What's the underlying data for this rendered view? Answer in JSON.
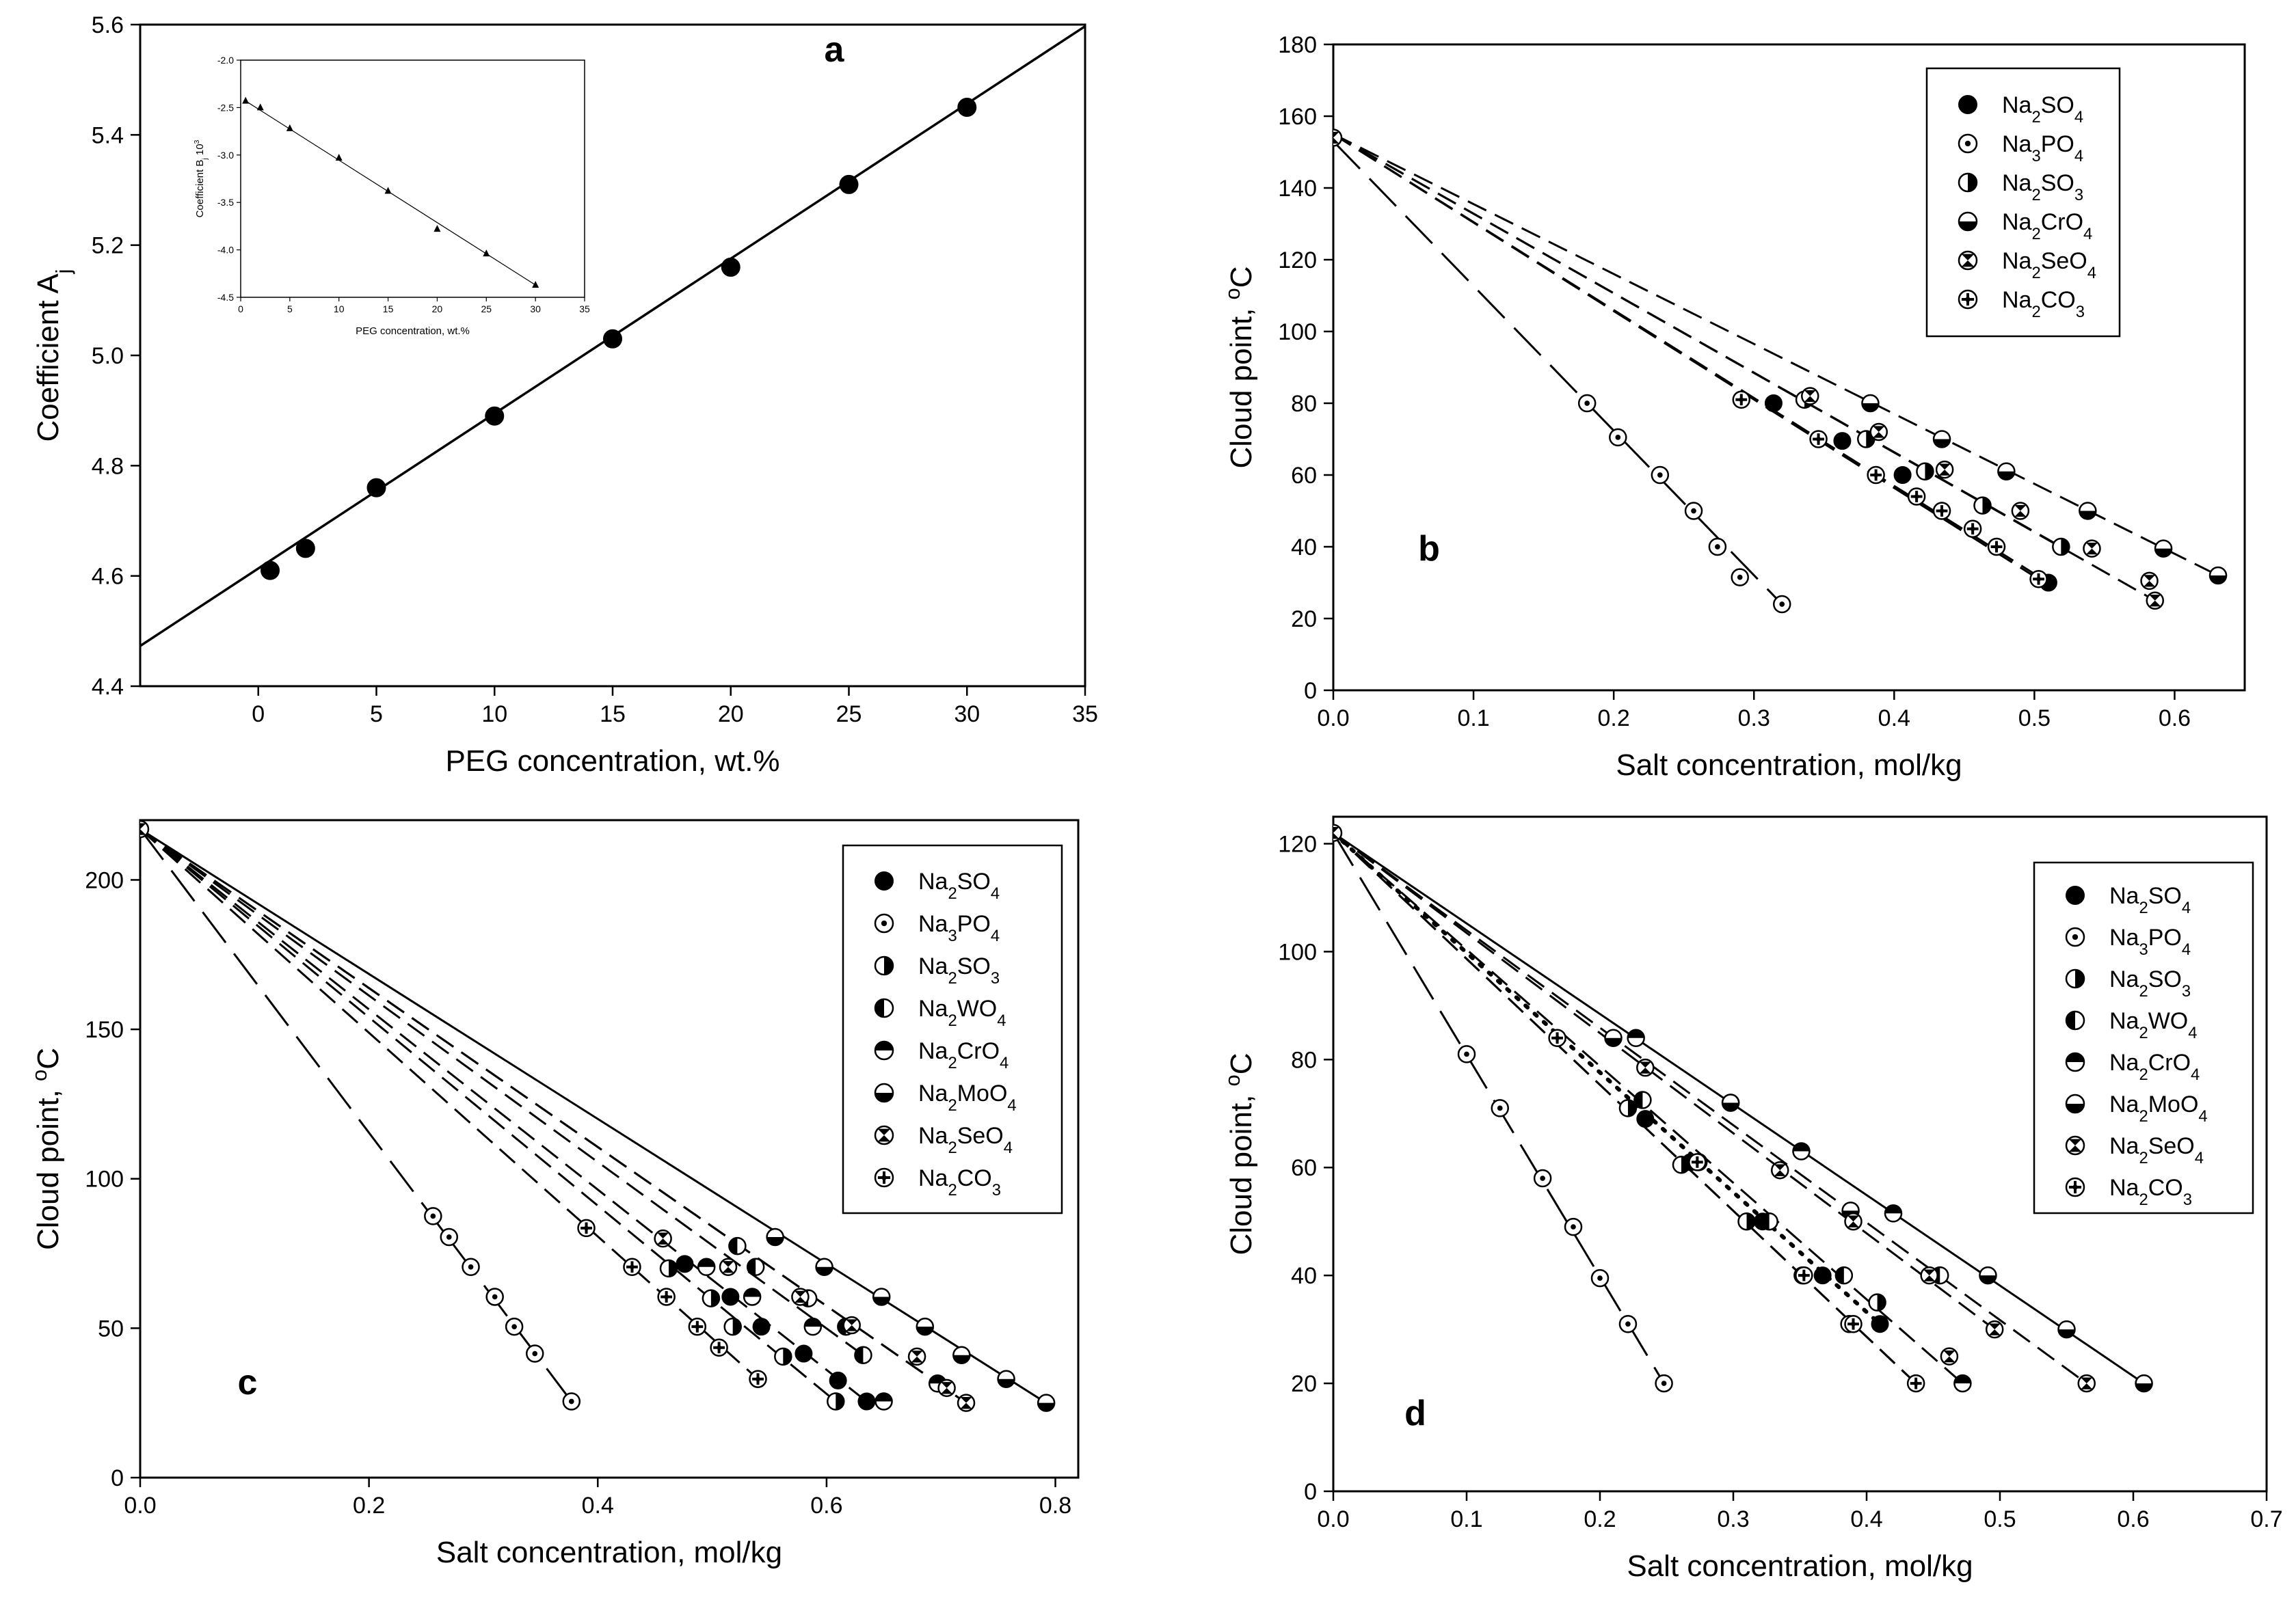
{
  "panel_a": {
    "letter": "a",
    "inset": {
      "type": "line",
      "ylabel": "Coefficient B_j 10^3",
      "xlabel": "PEG concentration, wt.%",
      "xlim": [
        0,
        35
      ],
      "ylim": [
        -4.5,
        -2.0
      ],
      "xticks": [
        "0",
        "5",
        "10",
        "15",
        "20",
        "25",
        "30",
        "35"
      ],
      "yticks": [
        "-4.5",
        "-4.0",
        "-3.5",
        "-3.0",
        "-2.5",
        "-2.0"
      ],
      "series": [
        {
          "name": "B_j",
          "x": [
            0.5,
            2,
            5,
            10,
            15,
            20,
            25,
            30
          ],
          "y": [
            -2.43,
            -2.5,
            -2.72,
            -3.03,
            -3.38,
            -3.78,
            -4.04,
            -4.37
          ]
        }
      ]
    }
  },
  "panel_b": {
    "letter": "b",
    "legend": [
      {
        "name": "Na2SO4",
        "sub": [
          "Na",
          "2",
          "SO",
          "4"
        ],
        "marker": "filled"
      },
      {
        "name": "Na3PO4",
        "sub": [
          "Na",
          "3",
          "PO",
          "4"
        ],
        "marker": "dot"
      },
      {
        "name": "Na2SO3",
        "sub": [
          "Na",
          "2",
          "SO",
          "3"
        ],
        "marker": "half-right"
      },
      {
        "name": "Na2CrO4",
        "sub": [
          "Na",
          "2",
          "CrO",
          "4"
        ],
        "marker": "half-bottom"
      },
      {
        "name": "Na2SeO4",
        "sub": [
          "Na",
          "2",
          "SeO",
          "4"
        ],
        "marker": "hourglass"
      },
      {
        "name": "Na2CO3",
        "sub": [
          "Na",
          "2",
          "CO",
          "3"
        ],
        "marker": "cross"
      }
    ]
  },
  "panel_c": {
    "letter": "c",
    "legend": [
      {
        "name": "Na2SO4",
        "sub": [
          "Na",
          "2",
          "SO",
          "4"
        ],
        "marker": "filled"
      },
      {
        "name": "Na3PO4",
        "sub": [
          "Na",
          "3",
          "PO",
          "4"
        ],
        "marker": "dot"
      },
      {
        "name": "Na2SO3",
        "sub": [
          "Na",
          "2",
          "SO",
          "3"
        ],
        "marker": "half-right"
      },
      {
        "name": "Na2WO4",
        "sub": [
          "Na",
          "2",
          "WO",
          "4"
        ],
        "marker": "half-left"
      },
      {
        "name": "Na2CrO4",
        "sub": [
          "Na",
          "2",
          "CrO",
          "4"
        ],
        "marker": "half-top"
      },
      {
        "name": "Na2MoO4",
        "sub": [
          "Na",
          "2",
          "MoO",
          "4"
        ],
        "marker": "half-bottom"
      },
      {
        "name": "Na2SeO4",
        "sub": [
          "Na",
          "2",
          "SeO",
          "4"
        ],
        "marker": "hourglass"
      },
      {
        "name": "Na2CO3",
        "sub": [
          "Na",
          "2",
          "CO",
          "3"
        ],
        "marker": "cross"
      }
    ]
  },
  "panel_d": {
    "letter": "d",
    "legend": [
      {
        "name": "Na2SO4",
        "sub": [
          "Na",
          "2",
          "SO",
          "4"
        ],
        "marker": "filled"
      },
      {
        "name": "Na3PO4",
        "sub": [
          "Na",
          "3",
          "PO",
          "4"
        ],
        "marker": "dot"
      },
      {
        "name": "Na2SO3",
        "sub": [
          "Na",
          "2",
          "SO",
          "3"
        ],
        "marker": "half-right"
      },
      {
        "name": "Na2WO4",
        "sub": [
          "Na",
          "2",
          "WO",
          "4"
        ],
        "marker": "half-left"
      },
      {
        "name": "Na2CrO4",
        "sub": [
          "Na",
          "2",
          "CrO",
          "4"
        ],
        "marker": "half-top"
      },
      {
        "name": "Na2MoO4",
        "sub": [
          "Na",
          "2",
          "MoO",
          "4"
        ],
        "marker": "half-bottom"
      },
      {
        "name": "Na2SeO4",
        "sub": [
          "Na",
          "2",
          "SeO",
          "4"
        ],
        "marker": "hourglass"
      },
      {
        "name": "Na2CO3",
        "sub": [
          "Na",
          "2",
          "CO",
          "3"
        ],
        "marker": "cross"
      }
    ]
  },
  "chart_data": [
    {
      "panel": "a",
      "type": "scatter",
      "title": "",
      "xlabel": "PEG concentration, wt.%",
      "ylabel": "Coefficient A_j",
      "xlim": [
        -5,
        35
      ],
      "ylim": [
        4.4,
        5.6
      ],
      "xticks": [
        "0",
        "5",
        "10",
        "15",
        "20",
        "25",
        "30",
        "35"
      ],
      "yticks": [
        "4.4",
        "4.6",
        "4.8",
        "5.0",
        "5.2",
        "5.4",
        "5.6"
      ],
      "series": [
        {
          "name": "A_j",
          "x": [
            0.5,
            2,
            5,
            10,
            15,
            20,
            25,
            30
          ],
          "y": [
            4.61,
            4.65,
            4.76,
            4.89,
            5.03,
            5.16,
            5.31,
            5.45
          ]
        }
      ],
      "fit_line": {
        "x": [
          -5,
          35
        ],
        "y": [
          4.473,
          5.597
        ],
        "style": "solid"
      }
    },
    {
      "panel": "b",
      "type": "scatter",
      "xlabel": "Salt concentration, mol/kg",
      "ylabel": "Cloud point, °C",
      "xlim": [
        0,
        0.65
      ],
      "ylim": [
        0,
        180
      ],
      "xticks": [
        "0.0",
        "0.1",
        "0.2",
        "0.3",
        "0.4",
        "0.5",
        "0.6"
      ],
      "yticks": [
        "0",
        "20",
        "40",
        "60",
        "80",
        "100",
        "120",
        "140",
        "160",
        "180"
      ],
      "series": [
        {
          "name": "Na2SO4",
          "marker": "filled",
          "x": [
            0.314,
            0.363,
            0.406,
            0.51
          ],
          "y": [
            80,
            69.5,
            60,
            30
          ],
          "line": {
            "x": [
              0,
              0.51
            ],
            "y": [
              155,
              30
            ],
            "style": "dashed"
          }
        },
        {
          "name": "Na3PO4",
          "marker": "dot",
          "x": [
            0.181,
            0.203,
            0.233,
            0.257,
            0.274,
            0.29,
            0.32
          ],
          "y": [
            80,
            70.5,
            60,
            50,
            40,
            31.5,
            24
          ],
          "line": {
            "x": [
              0,
              0.32
            ],
            "y": [
              153,
              24
            ],
            "style": "long-dash"
          }
        },
        {
          "name": "Na2SO3",
          "marker": "half-right",
          "x": [
            0.336,
            0.38,
            0.422,
            0.463,
            0.519
          ],
          "y": [
            81,
            70,
            61,
            51.5,
            40
          ],
          "line": {
            "x": [
              0,
              0.519
            ],
            "y": [
              155,
              40
            ],
            "style": "dashed"
          }
        },
        {
          "name": "Na2CrO4",
          "marker": "half-bottom",
          "x": [
            0.383,
            0.434,
            0.48,
            0.538,
            0.592,
            0.631
          ],
          "y": [
            80,
            70,
            61,
            50,
            39.5,
            32
          ],
          "line": {
            "x": [
              0,
              0.631
            ],
            "y": [
              155,
              32
            ],
            "style": "dashed"
          }
        },
        {
          "name": "Na2SeO4",
          "marker": "hourglass",
          "x": [
            0.34,
            0.389,
            0.436,
            0.49,
            0.541,
            0.582,
            0.586
          ],
          "y": [
            82,
            72,
            61.5,
            50,
            39.5,
            30.5,
            25
          ],
          "line": {
            "x": [
              0,
              0.586
            ],
            "y": [
              155,
              25
            ],
            "style": "dashed"
          }
        },
        {
          "name": "Na2CO3",
          "marker": "cross",
          "x": [
            0.291,
            0.346,
            0.387,
            0.416,
            0.434,
            0.456,
            0.473,
            0.503
          ],
          "y": [
            81,
            70,
            60,
            54,
            50,
            45,
            40,
            31
          ],
          "line": {
            "x": [
              0,
              0.503
            ],
            "y": [
              155,
              31
            ],
            "style": "dashed"
          }
        }
      ]
    },
    {
      "panel": "c",
      "type": "scatter",
      "xlabel": "Salt concentration, mol/kg",
      "ylabel": "Cloud point, °C",
      "xlim": [
        0,
        0.82
      ],
      "ylim": [
        0,
        220
      ],
      "xticks": [
        "0.0",
        "0.2",
        "0.4",
        "0.6",
        "0.8"
      ],
      "yticks": [
        "0",
        "50",
        "100",
        "150",
        "200"
      ],
      "series": [
        {
          "name": "Na2SO4",
          "marker": "filled",
          "x": [
            0.476,
            0.516,
            0.543,
            0.58,
            0.61,
            0.635
          ],
          "y": [
            71.5,
            60.5,
            50.5,
            41.5,
            32.5,
            25.5
          ],
          "line": {
            "x": [
              0,
              0.635
            ],
            "y": [
              217,
              25.5
            ],
            "style": "dashed"
          }
        },
        {
          "name": "Na3PO4",
          "marker": "dot",
          "x": [
            0.256,
            0.27,
            0.289,
            0.31,
            0.327,
            0.345,
            0.377
          ],
          "y": [
            87.5,
            80.5,
            70.5,
            60.5,
            50.5,
            41.5,
            25.5
          ],
          "line": {
            "x": [
              0,
              0.377
            ],
            "y": [
              217,
              25.5
            ],
            "style": "long-dash"
          }
        },
        {
          "name": "Na2SO3",
          "marker": "half-right",
          "x": [
            0.462,
            0.499,
            0.518,
            0.562,
            0.608
          ],
          "y": [
            70,
            60,
            50.5,
            40.5,
            25.5
          ],
          "line": {
            "x": [
              0,
              0.608
            ],
            "y": [
              217,
              25.5
            ],
            "style": "dashed"
          }
        },
        {
          "name": "Na2WO4",
          "marker": "half-left",
          "x": [
            0.522,
            0.538,
            0.584,
            0.617,
            0.632
          ],
          "y": [
            77.5,
            70.5,
            60,
            50.5,
            41
          ],
          "line": {
            "x": [
              0,
              0.632
            ],
            "y": [
              217,
              41
            ],
            "style": "dashed"
          }
        },
        {
          "name": "Na2CrO4",
          "marker": "half-top",
          "x": [
            0.495,
            0.535,
            0.588,
            0.65,
            0.697
          ],
          "y": [
            70.5,
            60.5,
            50.5,
            25.5,
            31.5
          ],
          "line": {
            "x": [
              0,
              0.72
            ],
            "y": [
              217,
              25.5
            ],
            "style": "dashed"
          }
        },
        {
          "name": "Na2MoO4",
          "marker": "half-bottom",
          "x": [
            0.555,
            0.598,
            0.648,
            0.686,
            0.718,
            0.757,
            0.792
          ],
          "y": [
            80.5,
            70.5,
            60.5,
            50.5,
            41,
            33,
            25
          ],
          "line": {
            "x": [
              0,
              0.792
            ],
            "y": [
              217,
              25
            ],
            "style": "solid"
          }
        },
        {
          "name": "Na2SeO4",
          "marker": "hourglass",
          "x": [
            0.457,
            0.514,
            0.577,
            0.622,
            0.679,
            0.705,
            0.722
          ],
          "y": [
            80,
            70.5,
            60.5,
            51,
            40.5,
            30,
            25
          ],
          "line": {
            "x": [
              0,
              0.722
            ],
            "y": [
              217,
              25
            ],
            "style": "dashed"
          }
        },
        {
          "name": "Na2CO3",
          "marker": "cross",
          "x": [
            0.39,
            0.43,
            0.46,
            0.487,
            0.506,
            0.54
          ],
          "y": [
            83.5,
            70.5,
            60.5,
            50.5,
            43.5,
            33
          ],
          "line": {
            "x": [
              0,
              0.54
            ],
            "y": [
              217,
              33
            ],
            "style": "dashed"
          }
        }
      ]
    },
    {
      "panel": "d",
      "type": "scatter",
      "xlabel": "Salt concentration, mol/kg",
      "ylabel": "Cloud point, °C",
      "xlim": [
        0,
        0.7
      ],
      "ylim": [
        0,
        125
      ],
      "xticks": [
        "0.0",
        "0.1",
        "0.2",
        "0.3",
        "0.4",
        "0.5",
        "0.6",
        "0.7"
      ],
      "yticks": [
        "0",
        "20",
        "40",
        "60",
        "80",
        "100",
        "120"
      ],
      "series": [
        {
          "name": "Na2SO4",
          "marker": "filled",
          "x": [
            0.234,
            0.268,
            0.322,
            0.367,
            0.41
          ],
          "y": [
            69,
            61,
            50,
            40,
            31
          ],
          "line": {
            "x": [
              0,
              0.41
            ],
            "y": [
              122,
              31
            ],
            "style": "dotted"
          }
        },
        {
          "name": "Na3PO4",
          "marker": "dot",
          "x": [
            0.1,
            0.125,
            0.157,
            0.18,
            0.2,
            0.221,
            0.248
          ],
          "y": [
            81,
            71,
            58,
            49,
            39.5,
            31,
            20
          ],
          "line": {
            "x": [
              0,
              0.248
            ],
            "y": [
              122,
              20
            ],
            "style": "long-dash"
          }
        },
        {
          "name": "Na2SO3",
          "marker": "half-right",
          "x": [
            0.221,
            0.261,
            0.31,
            0.352,
            0.387,
            0.408
          ],
          "y": [
            71,
            60.5,
            50,
            40,
            31,
            35
          ],
          "line": {
            "x": [
              0,
              0.437
            ],
            "y": [
              122,
              20
            ],
            "style": "dashed"
          }
        },
        {
          "name": "Na2WO4",
          "marker": "half-left",
          "x": [
            0.232,
            0.274,
            0.327,
            0.383,
            0.455
          ],
          "y": [
            72.5,
            61,
            50,
            40,
            40
          ],
          "line": {
            "x": [
              0,
              0.472
            ],
            "y": [
              122,
              20
            ],
            "style": "dashed"
          }
        },
        {
          "name": "Na2CrO4",
          "marker": "half-top",
          "x": [
            0.227,
            0.298,
            0.351,
            0.42,
            0.472
          ],
          "y": [
            84,
            72,
            63,
            51.5,
            20
          ],
          "line": {
            "x": [
              0,
              0.565
            ],
            "y": [
              122,
              20
            ],
            "style": "dashed"
          }
        },
        {
          "name": "Na2MoO4",
          "marker": "half-bottom",
          "x": [
            0.21,
            0.298,
            0.388,
            0.491,
            0.55,
            0.608
          ],
          "y": [
            84,
            72,
            52,
            40,
            30,
            20
          ],
          "line": {
            "x": [
              0,
              0.608
            ],
            "y": [
              122,
              20
            ],
            "style": "solid"
          }
        },
        {
          "name": "Na2SeO4",
          "marker": "hourglass",
          "x": [
            0.234,
            0.335,
            0.39,
            0.447,
            0.462,
            0.496,
            0.565
          ],
          "y": [
            78.5,
            59.5,
            50,
            40,
            25,
            30,
            20
          ],
          "line": {
            "x": [
              0,
              0.496
            ],
            "y": [
              122,
              30
            ],
            "style": "dashed"
          }
        },
        {
          "name": "Na2CO3",
          "marker": "cross",
          "x": [
            0.168,
            0.273,
            0.353,
            0.39,
            0.437
          ],
          "y": [
            84,
            61,
            40,
            31,
            20
          ],
          "line": {
            "x": [
              0,
              0.437
            ],
            "y": [
              122,
              20
            ],
            "style": "dashed"
          }
        }
      ]
    }
  ]
}
